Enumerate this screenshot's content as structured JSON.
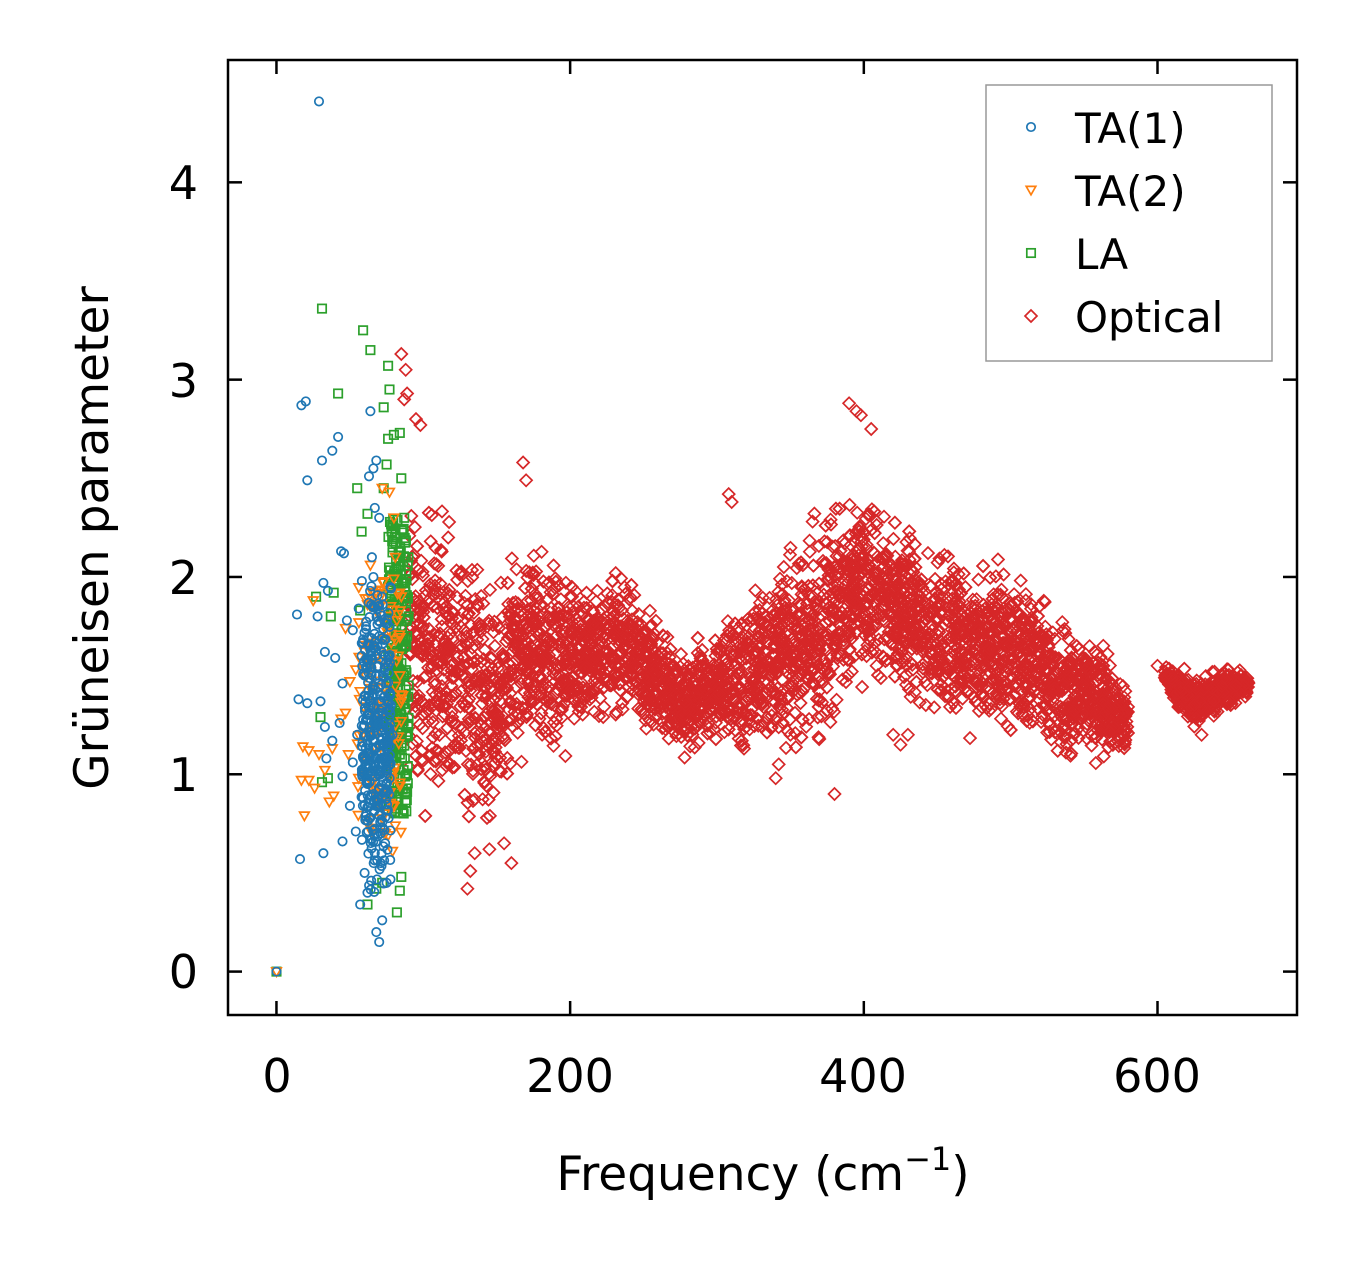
{
  "chart_data": {
    "type": "scatter",
    "title": "",
    "xlabel": "Frequency (cm",
    "xlabel_sup": "−1",
    "xlabel_end": ")",
    "ylabel": "Grüneisen parameter",
    "xlim": [
      -33,
      695
    ],
    "ylim": [
      -0.22,
      4.62
    ],
    "xticks": [
      0,
      200,
      400,
      600
    ],
    "yticks": [
      0,
      1,
      2,
      3,
      4
    ],
    "xtick_labels": [
      "0",
      "200",
      "400",
      "600"
    ],
    "ytick_labels": [
      "0",
      "1",
      "2",
      "3",
      "4"
    ],
    "grid": false,
    "legend_position": "top-right",
    "series": [
      {
        "name": "TA(1)",
        "marker": "circle",
        "color": "#1f77b4",
        "points": [
          [
            0,
            0
          ],
          [
            29,
            4.41
          ],
          [
            17,
            2.87
          ],
          [
            20,
            2.89
          ],
          [
            31,
            2.59
          ],
          [
            21,
            2.49
          ],
          [
            38,
            2.64
          ],
          [
            42,
            2.71
          ],
          [
            32,
            1.97
          ],
          [
            35,
            1.93
          ],
          [
            14,
            1.81
          ],
          [
            28,
            1.8
          ],
          [
            33,
            1.62
          ],
          [
            40,
            1.59
          ],
          [
            15,
            1.38
          ],
          [
            21,
            1.36
          ],
          [
            30,
            1.37
          ],
          [
            33,
            1.24
          ],
          [
            34,
            1.08
          ],
          [
            38,
            1.17
          ],
          [
            45,
            0.99
          ],
          [
            50,
            0.84
          ],
          [
            45,
            0.66
          ],
          [
            16,
            0.57
          ],
          [
            32,
            0.6
          ],
          [
            57,
            0.34
          ],
          [
            68,
            0.2
          ],
          [
            70,
            0.15
          ],
          [
            64,
            2.84
          ],
          [
            66,
            2.55
          ],
          [
            68,
            2.59
          ],
          [
            63,
            2.51
          ],
          [
            67,
            2.35
          ],
          [
            44,
            2.13
          ],
          [
            46,
            2.12
          ],
          [
            56,
            1.84
          ],
          [
            52,
            1.73
          ],
          [
            48,
            1.78
          ],
          [
            45,
            1.46
          ],
          [
            43,
            1.26
          ],
          [
            55,
            1.2
          ],
          [
            52,
            1.06
          ],
          [
            59,
            0.88
          ],
          [
            54,
            0.71
          ],
          [
            60,
            0.5
          ],
          [
            62,
            0.4
          ],
          [
            72,
            0.26
          ],
          [
            75,
            0.45
          ],
          [
            60,
            1.5
          ],
          [
            62,
            1.3
          ],
          [
            64,
            1.1
          ],
          [
            66,
            0.9
          ],
          [
            68,
            0.7
          ],
          [
            70,
            1.7
          ],
          [
            72,
            1.9
          ],
          [
            74,
            1.6
          ],
          [
            65,
            2.1
          ],
          [
            70,
            2.3
          ],
          [
            63,
            1.65
          ],
          [
            66,
            1.45
          ],
          [
            68,
            1.25
          ],
          [
            70,
            1.05
          ],
          [
            72,
            0.85
          ],
          [
            74,
            0.65
          ],
          [
            76,
            1.55
          ],
          [
            78,
            1.35
          ],
          [
            73,
            1.15
          ],
          [
            75,
            0.95
          ],
          [
            58,
            1.6
          ],
          [
            61,
            1.75
          ],
          [
            69,
            1.85
          ],
          [
            71,
            0.55
          ],
          [
            67,
            0.6
          ],
          [
            64,
            0.78
          ],
          [
            62,
            0.95
          ],
          [
            77,
            1.4
          ],
          [
            79,
            1.2
          ],
          [
            66,
            2.0
          ]
        ]
      },
      {
        "name": "TA(2)",
        "marker": "triangle-down",
        "color": "#ff7f0e",
        "points": [
          [
            0,
            0
          ],
          [
            25,
            1.88
          ],
          [
            18,
            1.14
          ],
          [
            22,
            1.12
          ],
          [
            29,
            1.1
          ],
          [
            17,
            0.97
          ],
          [
            22,
            0.97
          ],
          [
            26,
            0.93
          ],
          [
            33,
            1.02
          ],
          [
            38,
            1.13
          ],
          [
            19,
            0.79
          ],
          [
            36,
            0.86
          ],
          [
            39,
            0.89
          ],
          [
            47,
            1.31
          ],
          [
            50,
            1.47
          ],
          [
            54,
            1.53
          ],
          [
            57,
            1.42
          ],
          [
            60,
            1.62
          ],
          [
            47,
            1.74
          ],
          [
            62,
            1.86
          ],
          [
            64,
            2.06
          ],
          [
            72,
            2.45
          ],
          [
            77,
            2.43
          ],
          [
            44,
            1.28
          ],
          [
            49,
            1.1
          ],
          [
            56,
            0.98
          ],
          [
            68,
            1.21
          ],
          [
            73,
            1.32
          ],
          [
            76,
            0.69
          ],
          [
            79,
            0.61
          ],
          [
            66,
            0.92
          ],
          [
            70,
            1.62
          ],
          [
            78,
            1.71
          ],
          [
            82,
            1.78
          ],
          [
            84,
            1.5
          ],
          [
            86,
            1.4
          ],
          [
            80,
            2.3
          ],
          [
            81,
            2.1
          ],
          [
            74,
            0.8
          ],
          [
            85,
            1.9
          ],
          [
            83,
            1.6
          ]
        ]
      },
      {
        "name": "LA",
        "marker": "square",
        "color": "#2ca02c",
        "points": [
          [
            0,
            0
          ],
          [
            31,
            3.36
          ],
          [
            59,
            3.25
          ],
          [
            64,
            3.15
          ],
          [
            42,
            2.93
          ],
          [
            76,
            3.07
          ],
          [
            77,
            2.95
          ],
          [
            73,
            2.86
          ],
          [
            76,
            2.7
          ],
          [
            80,
            2.72
          ],
          [
            84,
            2.73
          ],
          [
            75,
            2.57
          ],
          [
            55,
            2.45
          ],
          [
            73,
            2.45
          ],
          [
            58,
            2.23
          ],
          [
            62,
            2.32
          ],
          [
            27,
            1.9
          ],
          [
            39,
            1.92
          ],
          [
            37,
            1.8
          ],
          [
            57,
            1.83
          ],
          [
            30,
            1.29
          ],
          [
            31,
            0.96
          ],
          [
            35,
            0.98
          ],
          [
            62,
            0.34
          ],
          [
            68,
            0.42
          ],
          [
            72,
            0.45
          ],
          [
            82,
            0.3
          ],
          [
            84,
            0.41
          ],
          [
            85,
            0.48
          ],
          [
            80,
            0.95
          ],
          [
            86,
            0.82
          ],
          [
            88,
            0.9
          ],
          [
            85,
            1.3
          ],
          [
            87,
            1.5
          ],
          [
            89,
            1.7
          ],
          [
            86,
            1.9
          ],
          [
            88,
            2.1
          ],
          [
            87,
            2.3
          ],
          [
            84,
            1.1
          ],
          [
            83,
            1.6
          ],
          [
            81,
            2.0
          ],
          [
            85,
            2.5
          ],
          [
            89,
            1.2
          ],
          [
            90,
            1.45
          ],
          [
            90,
            1.8
          ]
        ]
      },
      {
        "name": "Optical",
        "marker": "diamond",
        "color": "#d62728",
        "band": [
          [
            90,
            1.0,
            2.45
          ],
          [
            100,
            0.75,
            2.5
          ],
          [
            110,
            0.7,
            2.4
          ],
          [
            120,
            0.6,
            2.35
          ],
          [
            130,
            0.5,
            2.3
          ],
          [
            140,
            0.55,
            2.25
          ],
          [
            150,
            0.7,
            2.0
          ],
          [
            160,
            0.9,
            2.25
          ],
          [
            170,
            0.95,
            2.3
          ],
          [
            180,
            0.95,
            2.3
          ],
          [
            190,
            1.0,
            2.25
          ],
          [
            200,
            1.1,
            2.05
          ],
          [
            210,
            1.15,
            2.0
          ],
          [
            220,
            1.2,
            2.05
          ],
          [
            230,
            1.2,
            2.1
          ],
          [
            240,
            1.2,
            2.05
          ],
          [
            250,
            1.2,
            1.9
          ],
          [
            260,
            1.15,
            1.8
          ],
          [
            270,
            1.05,
            1.7
          ],
          [
            280,
            1.05,
            1.65
          ],
          [
            290,
            1.1,
            1.75
          ],
          [
            300,
            1.1,
            1.8
          ],
          [
            310,
            1.05,
            1.95
          ],
          [
            320,
            1.05,
            2.0
          ],
          [
            330,
            1.1,
            2.05
          ],
          [
            340,
            1.1,
            2.15
          ],
          [
            350,
            1.1,
            2.25
          ],
          [
            360,
            1.05,
            2.25
          ],
          [
            370,
            1.1,
            2.35
          ],
          [
            380,
            1.15,
            2.45
          ],
          [
            390,
            1.3,
            2.55
          ],
          [
            400,
            1.4,
            2.5
          ],
          [
            410,
            1.4,
            2.45
          ],
          [
            420,
            1.35,
            2.35
          ],
          [
            430,
            1.35,
            2.3
          ],
          [
            440,
            1.3,
            2.25
          ],
          [
            450,
            1.25,
            2.2
          ],
          [
            460,
            1.2,
            2.2
          ],
          [
            470,
            1.15,
            2.15
          ],
          [
            480,
            1.15,
            2.15
          ],
          [
            490,
            1.1,
            2.15
          ],
          [
            500,
            1.1,
            2.1
          ],
          [
            510,
            1.1,
            2.05
          ],
          [
            520,
            1.1,
            2.05
          ],
          [
            530,
            1.05,
            1.85
          ],
          [
            540,
            1.05,
            1.85
          ],
          [
            550,
            1.05,
            1.8
          ],
          [
            560,
            1.0,
            1.75
          ],
          [
            570,
            1.05,
            1.6
          ],
          [
            580,
            1.05,
            1.5
          ],
          [
            605,
            1.45,
            1.55
          ],
          [
            615,
            1.3,
            1.55
          ],
          [
            625,
            1.2,
            1.55
          ],
          [
            635,
            1.25,
            1.55
          ],
          [
            645,
            1.3,
            1.55
          ],
          [
            655,
            1.35,
            1.55
          ],
          [
            662,
            1.4,
            1.5
          ]
        ],
        "outliers": [
          [
            85,
            3.13
          ],
          [
            88,
            3.05
          ],
          [
            89,
            2.93
          ],
          [
            87,
            2.9
          ],
          [
            95,
            2.8
          ],
          [
            98,
            2.77
          ],
          [
            390,
            2.88
          ],
          [
            395,
            2.84
          ],
          [
            398,
            2.82
          ],
          [
            405,
            2.75
          ],
          [
            168,
            2.58
          ],
          [
            170,
            2.49
          ],
          [
            308,
            2.42
          ],
          [
            310,
            2.38
          ],
          [
            130,
            0.42
          ],
          [
            132,
            0.51
          ],
          [
            160,
            0.55
          ],
          [
            135,
            0.6
          ],
          [
            145,
            0.62
          ],
          [
            155,
            0.65
          ],
          [
            420,
            1.2
          ],
          [
            430,
            1.2
          ],
          [
            425,
            1.15
          ],
          [
            600,
            1.55
          ],
          [
            630,
            1.2
          ],
          [
            340,
            0.98
          ],
          [
            342,
            1.05
          ],
          [
            380,
            0.9
          ]
        ]
      }
    ]
  }
}
